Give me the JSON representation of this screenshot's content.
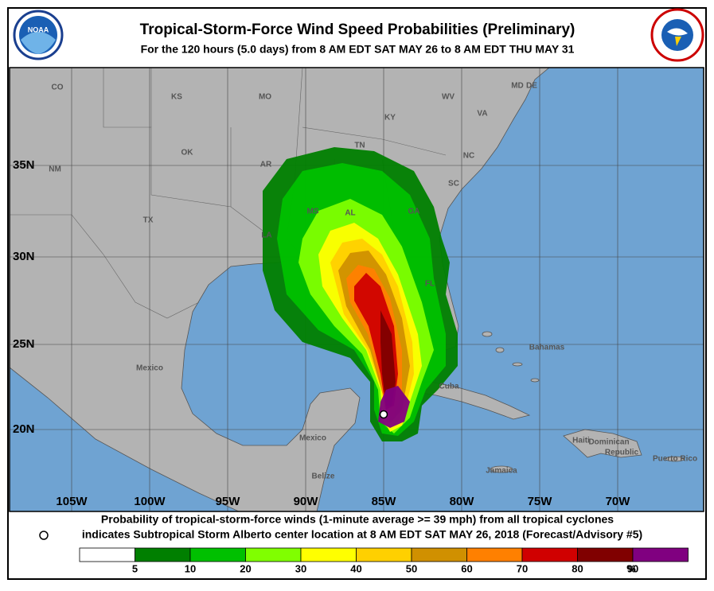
{
  "header": {
    "title": "Tropical-Storm-Force Wind Speed Probabilities (Preliminary)",
    "subtitle": "For the 120 hours (5.0 days) from 8 AM EDT SAT MAY 26 to 8 AM EDT THU MAY 31"
  },
  "map": {
    "places": [
      "CO",
      "KS",
      "MO",
      "KY",
      "WV",
      "VA",
      "DE",
      "MD",
      "TN",
      "NC",
      "OK",
      "AR",
      "SC",
      "NM",
      "TX",
      "MS",
      "AL",
      "GA",
      "LA",
      "FL",
      "Bahamas",
      "Mexico",
      "Cuba",
      "Mexico",
      "Haiti",
      "Dominican",
      "Republic",
      "Belize",
      "Jamaica",
      "Puerto Rico"
    ],
    "lat_labels": [
      "35N",
      "30N",
      "25N",
      "20N"
    ],
    "lon_labels": [
      "105W",
      "100W",
      "95W",
      "90W",
      "85W",
      "80W",
      "75W",
      "70W"
    ]
  },
  "footer": {
    "line1": "Probability of tropical-storm-force winds (1-minute average >= 39 mph) from all tropical cyclones",
    "line2": "indicates Subtropical Storm Alberto center location at 8 AM EDT SAT MAY 26, 2018 (Forecast/Advisory #5)"
  },
  "legend": {
    "ticks": [
      5,
      10,
      20,
      30,
      40,
      50,
      60,
      70,
      80,
      90
    ],
    "unit": "%",
    "colors": [
      "#ffffff",
      "#007f00",
      "#00c000",
      "#80ff00",
      "#ffff00",
      "#ffd000",
      "#d09000",
      "#ff8000",
      "#d00000",
      "#800000",
      "#800080"
    ]
  }
}
